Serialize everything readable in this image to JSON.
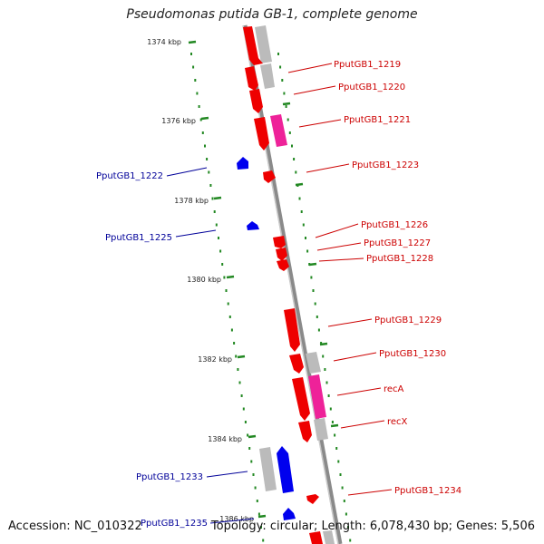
{
  "title": "Pseudomonas putida GB-1, complete genome",
  "footer": {
    "accession": "Accession: NC_010322",
    "summary": "Topology: circular; Length: 6,078,430 bp; Genes: 5,506"
  },
  "colors": {
    "backbone": "#8a8a8a",
    "forward_gene": "#ee0000",
    "reverse_gene": "#0000ee",
    "highlight_gene": "#ee2299",
    "pseudo_gene": "#bbbbbb",
    "dots": "#228822",
    "label_right": "#cc0000",
    "label_left": "#000099"
  },
  "kbp_marks": [
    "1374 kbp",
    "1376 kbp",
    "1378 kbp",
    "1380 kbp",
    "1382 kbp",
    "1384 kbp",
    "1386 kbp"
  ],
  "labels_right": [
    "PputGB1_1219",
    "PputGB1_1220",
    "PputGB1_1221",
    "PputGB1_1223",
    "PputGB1_1226",
    "PputGB1_1227",
    "PputGB1_1228",
    "PputGB1_1229",
    "PputGB1_1230",
    "recA",
    "recX",
    "PputGB1_1234"
  ],
  "labels_left": [
    "PputGB1_1222",
    "PputGB1_1225",
    "PputGB1_1233",
    "PputGB1_1235"
  ]
}
